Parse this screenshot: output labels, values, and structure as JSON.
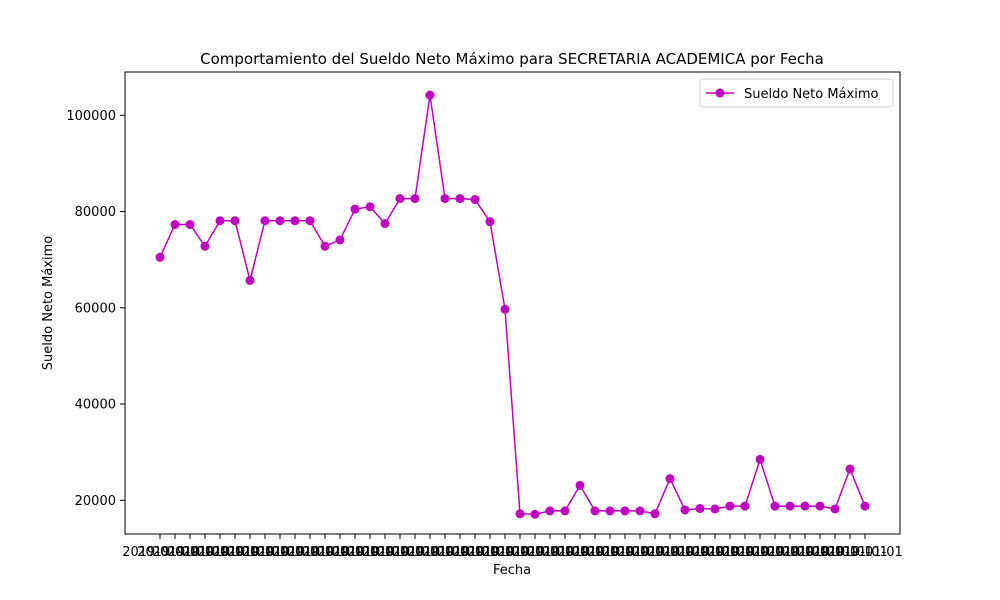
{
  "chart_data": {
    "type": "line",
    "title": "Comportamiento del Sueldo Neto Máximo para SECRETARIA ACADEMICA por Fecha",
    "xlabel": "Fecha",
    "ylabel": "Sueldo Neto Máximo",
    "ylim": [
      13000,
      109000
    ],
    "y_ticks": [
      20000,
      40000,
      60000,
      80000,
      100000
    ],
    "y_tick_labels": [
      "20000",
      "40000",
      "60000",
      "80000",
      "100000"
    ],
    "grid": false,
    "legend_position": "top-right",
    "colors": {
      "line": "#bf00bf"
    },
    "x_tick_text": "2019-01-01",
    "x_ticks_note": "",
    "series": [
      {
        "name": "Sueldo Neto Máximo",
        "values": [
          70500,
          77300,
          77300,
          72800,
          78100,
          78100,
          65700,
          78100,
          78100,
          78100,
          78100,
          72800,
          74100,
          80500,
          81000,
          77500,
          82700,
          82700,
          104200,
          82700,
          82700,
          82500,
          77900,
          59700,
          17200,
          17100,
          17800,
          17800,
          23100,
          17800,
          17800,
          17800,
          17800,
          17200,
          24500,
          18000,
          18300,
          18200,
          18800,
          18800,
          28500,
          18800,
          18800,
          18800,
          18800,
          18200,
          26500,
          18800
        ]
      }
    ]
  }
}
